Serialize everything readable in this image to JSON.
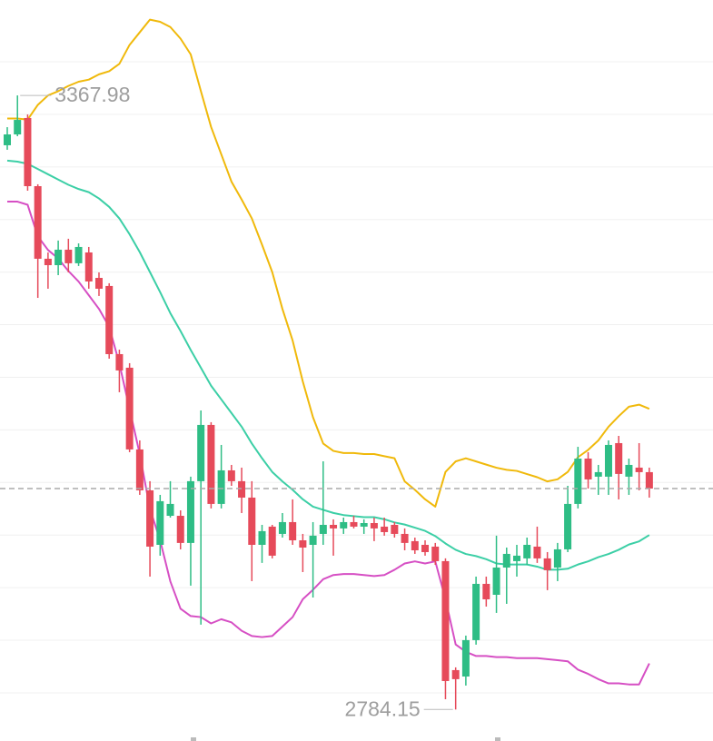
{
  "chart_data": {
    "type": "candlestick",
    "up_color": "#2ebd85",
    "down_color": "#e64a5a",
    "grid": true,
    "ylim": [
      2754.2,
      3458.7
    ],
    "yticks": [
      2800,
      2850,
      2900,
      2950,
      3000,
      3050,
      3100,
      3150,
      3200,
      3250,
      3300,
      3350,
      3400
    ],
    "open": [
      3320.6,
      3330.9,
      3346.5,
      3281.7,
      3212.7,
      3206.6,
      3221.3,
      3208.4,
      3218.7,
      3194.5,
      3186.8,
      3122.0,
      3109.1,
      3031.4,
      2992.5,
      2940.7,
      2968.3,
      2968.3,
      2942.5,
      3001.2,
      3054.7,
      2979.6,
      3011.5,
      3001.2,
      2985.6,
      2940.7,
      2958.0,
      2951.1,
      2962.3,
      2945.0,
      2940.7,
      2951.1,
      2959.7,
      2956.3,
      2962.3,
      2958.0,
      2961.4,
      2958.0,
      2959.7,
      2951.1,
      2944.2,
      2940.7,
      2939.0,
      2925.2,
      2821.6,
      2815.5,
      2850.1,
      2903.6,
      2893.2,
      2919.1,
      2925.2,
      2927.8,
      2939.0,
      2927.8,
      2919.1,
      2936.4,
      2979.6,
      3022.7,
      3005.5,
      3005.5,
      3037.4,
      3005.5,
      3014.1,
      3009.8
    ],
    "high": [
      3337.8,
      3367.98,
      3349.9,
      3283.5,
      3218.7,
      3230.0,
      3231.7,
      3227.3,
      3223.9,
      3199.7,
      3189.4,
      3126.3,
      3113.4,
      3040.0,
      3001.2,
      2988.2,
      3001.2,
      2973.5,
      3005.5,
      3068.5,
      3057.3,
      3035.7,
      3016.7,
      3014.1,
      3001.2,
      2959.7,
      2959.7,
      2970.9,
      2983.9,
      2951.1,
      2962.3,
      3020.1,
      2964.9,
      2966.6,
      2968.3,
      2964.9,
      2966.6,
      2966.6,
      2962.3,
      2956.3,
      2947.6,
      2945.0,
      2942.5,
      2927.8,
      2824.2,
      2854.4,
      2910.5,
      2910.5,
      2949.4,
      2938.1,
      2940.7,
      2947.6,
      2958.0,
      2933.8,
      2942.5,
      2996.8,
      3033.9,
      3028.8,
      3016.7,
      3040.0,
      3044.3,
      3022.7,
      3037.4,
      3014.1
    ],
    "low": [
      3316.3,
      3329.2,
      3277.4,
      3175.5,
      3184.2,
      3197.1,
      3199.7,
      3205.8,
      3184.2,
      3177.3,
      3117.7,
      3085.8,
      3028.8,
      2988.2,
      2910.5,
      2930.4,
      2966.6,
      2936.4,
      2901.9,
      2864.8,
      2975.3,
      2975.3,
      2996.8,
      2970.9,
      2906.2,
      2923.5,
      2927.8,
      2947.6,
      2940.7,
      2914.8,
      2890.6,
      2940.7,
      2930.4,
      2951.1,
      2956.3,
      2951.1,
      2944.2,
      2949.4,
      2947.6,
      2935.5,
      2932.1,
      2930.4,
      2921.7,
      2793.9,
      2784.15,
      2806.9,
      2845.8,
      2882.0,
      2876.0,
      2884.6,
      2910.5,
      2921.7,
      2923.5,
      2897.6,
      2906.2,
      2933.8,
      2975.3,
      2994.2,
      2988.2,
      2988.2,
      2983.9,
      2988.2,
      2992.5,
      2985.6
    ],
    "close": [
      3330.9,
      3344.7,
      3281.7,
      3212.7,
      3206.6,
      3221.3,
      3208.4,
      3223.9,
      3191.1,
      3184.2,
      3122.0,
      3106.5,
      3031.4,
      2992.5,
      2939.0,
      2982.2,
      2979.6,
      2942.5,
      3001.2,
      3054.7,
      2979.6,
      3011.5,
      3001.2,
      2985.6,
      2940.7,
      2953.7,
      2930.4,
      2962.3,
      2945.0,
      2938.1,
      2949.4,
      2959.7,
      2956.3,
      2962.3,
      2958.0,
      2961.4,
      2956.3,
      2952.8,
      2951.1,
      2942.5,
      2935.5,
      2933.8,
      2925.2,
      2811.2,
      2813.0,
      2850.1,
      2903.6,
      2888.9,
      2919.1,
      2932.1,
      2930.4,
      2940.7,
      2927.8,
      2916.6,
      2936.4,
      2979.6,
      3022.7,
      3002.9,
      3009.8,
      3035.7,
      3008.1,
      3016.7,
      3009.8,
      2994.2
    ],
    "series": [
      {
        "color": "#f0b90b",
        "values": [
          3346,
          3346,
          3345,
          3359,
          3368,
          3372,
          3377,
          3381,
          3383,
          3388,
          3391,
          3398,
          3416,
          3428,
          3440,
          3438,
          3433,
          3422,
          3407,
          3372,
          3338,
          3312,
          3286,
          3269,
          3251,
          3226,
          3200,
          3165,
          3135,
          3096,
          3062,
          3037,
          3030,
          3028,
          3028,
          3027,
          3027,
          3025,
          3023,
          3001,
          2993,
          2984,
          2977,
          3010,
          3020,
          3023,
          3020,
          3017,
          3014,
          3012,
          3011,
          3008,
          3005,
          3001,
          3003,
          3010,
          3024,
          3031,
          3040,
          3053,
          3063,
          3072,
          3074,
          3070
        ]
      },
      {
        "color": "#3ccfa6",
        "values": [
          3306,
          3305,
          3303,
          3298,
          3293,
          3288,
          3283,
          3279,
          3276,
          3270,
          3262,
          3251,
          3236,
          3219,
          3200,
          3181,
          3161,
          3144,
          3126,
          3109,
          3092,
          3079,
          3066,
          3053,
          3037,
          3023,
          3010,
          3001,
          2993,
          2984,
          2977,
          2974,
          2971,
          2969,
          2968,
          2967,
          2967,
          2965,
          2962,
          2960,
          2957,
          2954,
          2949,
          2942,
          2936,
          2932,
          2930,
          2927,
          2923,
          2922,
          2922,
          2922,
          2920,
          2917,
          2917,
          2918,
          2922,
          2925,
          2929,
          2932,
          2936,
          2941,
          2944,
          2950
        ]
      },
      {
        "color": "#d64fc4",
        "values": [
          3267,
          3267,
          3264,
          3234,
          3221,
          3213,
          3201,
          3191,
          3178,
          3165,
          3148,
          3113,
          3070,
          3027,
          2975,
          2945,
          2906,
          2880,
          2873,
          2872,
          2866,
          2870,
          2867,
          2859,
          2854,
          2853,
          2854,
          2863,
          2872,
          2889,
          2898,
          2908,
          2912,
          2913,
          2913,
          2912,
          2911,
          2912,
          2917,
          2923,
          2925,
          2923,
          2925,
          2889,
          2846,
          2839,
          2835,
          2835,
          2834,
          2834,
          2833,
          2833,
          2833,
          2832,
          2831,
          2830,
          2822,
          2818,
          2813,
          2809,
          2809,
          2808,
          2808,
          2828
        ]
      }
    ]
  }
}
